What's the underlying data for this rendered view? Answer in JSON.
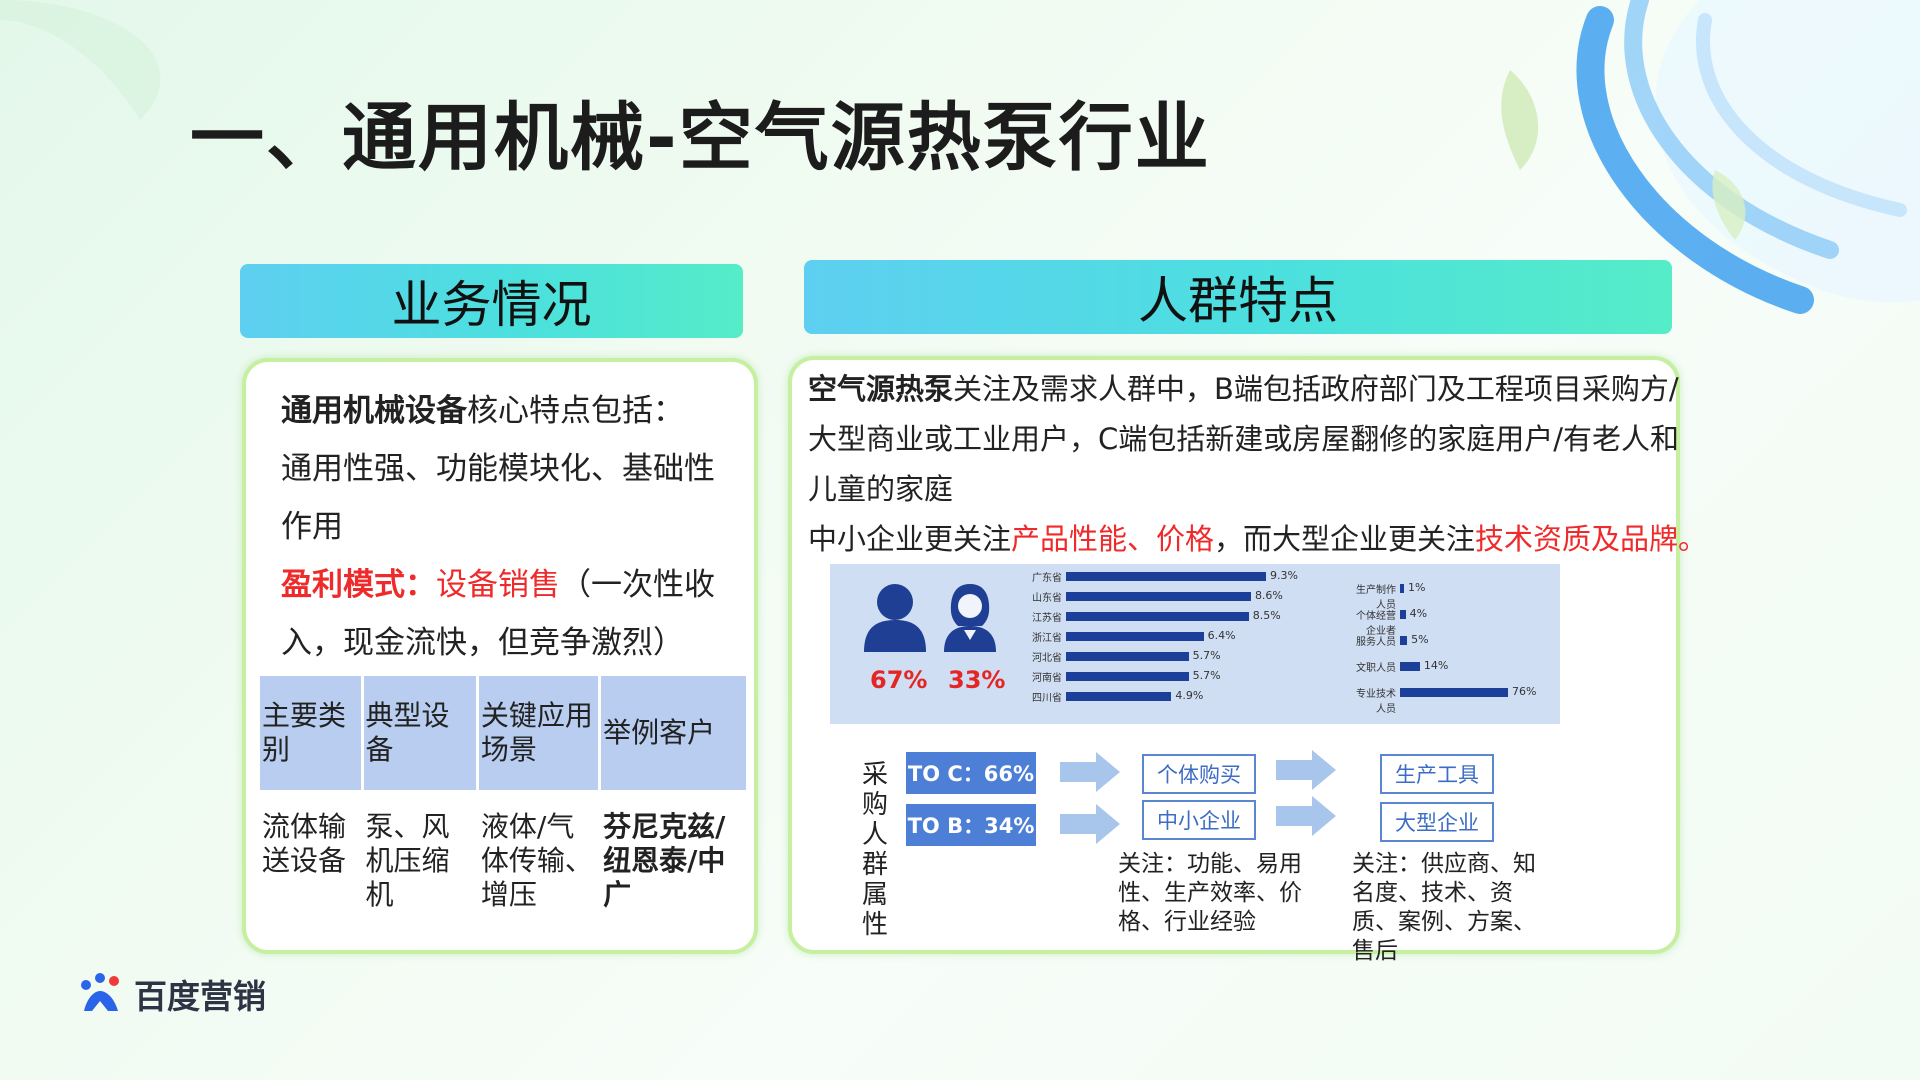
{
  "slide": {
    "title": "一、通用机械-空气源热泵行业"
  },
  "left_panel": {
    "header": "业务情况",
    "intro_bold": "通用机械设备",
    "intro_rest": "核心特点包括：",
    "intro_line2": "通用性强、功能模块化、基础性",
    "intro_line3": "作用",
    "profit_label": "盈利模式：",
    "profit_value": "设备销售",
    "profit_rest": "（一次性收",
    "profit_line2": "入，现金流快，但竞争激烈）",
    "table": {
      "headers": [
        "主要类别",
        "典型设备",
        "关键应用场景",
        "举例客户"
      ],
      "row": [
        "流体输送设备",
        "泵、风机压缩机",
        "液体/气体传输、增压",
        "芬尼克兹/纽恩泰/中广"
      ]
    }
  },
  "right_panel": {
    "header": "人群特点",
    "para1_bold": "空气源热泵",
    "para1_rest": "关注及需求人群中，B端包括政府部门及工程项目采购方/",
    "para1_line2": "大型商业或工业用户，C端包括新建或房屋翻修的家庭用户/有老人和",
    "para1_line3": "儿童的家庭",
    "para2_start": "中小企业更关注",
    "para2_red1": "产品性能、价格",
    "para2_mid": "，而大型企业更关注",
    "para2_red2": "技术资质及品牌。",
    "gender": {
      "male": "67%",
      "female": "33%"
    },
    "region_bars": [
      {
        "label": "广东省",
        "value": 9.3,
        "text": "9.3%"
      },
      {
        "label": "山东省",
        "value": 8.6,
        "text": "8.6%"
      },
      {
        "label": "江苏省",
        "value": 8.5,
        "text": "8.5%"
      },
      {
        "label": "浙江省",
        "value": 6.4,
        "text": "6.4%"
      },
      {
        "label": "河北省",
        "value": 5.7,
        "text": "5.7%"
      },
      {
        "label": "河南省",
        "value": 5.7,
        "text": "5.7%"
      },
      {
        "label": "四川省",
        "value": 4.9,
        "text": "4.9%"
      }
    ],
    "job_bars": [
      {
        "label": "生产制作人员",
        "value": 1,
        "text": "1%"
      },
      {
        "label": "个体经营企业者",
        "value": 4,
        "text": "4%"
      },
      {
        "label": "服务人员",
        "value": 5,
        "text": "5%"
      },
      {
        "label": "文职人员",
        "value": 14,
        "text": "14%"
      },
      {
        "label": "专业技术人员",
        "value": 76,
        "text": "76%"
      }
    ],
    "flow": {
      "left_label": "采购人群属性",
      "toc": "TO C：66%",
      "tob": "TO B：34%",
      "mid_top": "个体购买",
      "mid_bottom": "中小企业",
      "right_top": "生产工具",
      "right_bottom": "大型企业",
      "note_mid": "关注：功能、易用性、生产效率、价格、行业经验",
      "note_right": "关注：供应商、知名度、技术、资质、案例、方案、售后"
    }
  },
  "brand": {
    "name": "百度营销"
  }
}
